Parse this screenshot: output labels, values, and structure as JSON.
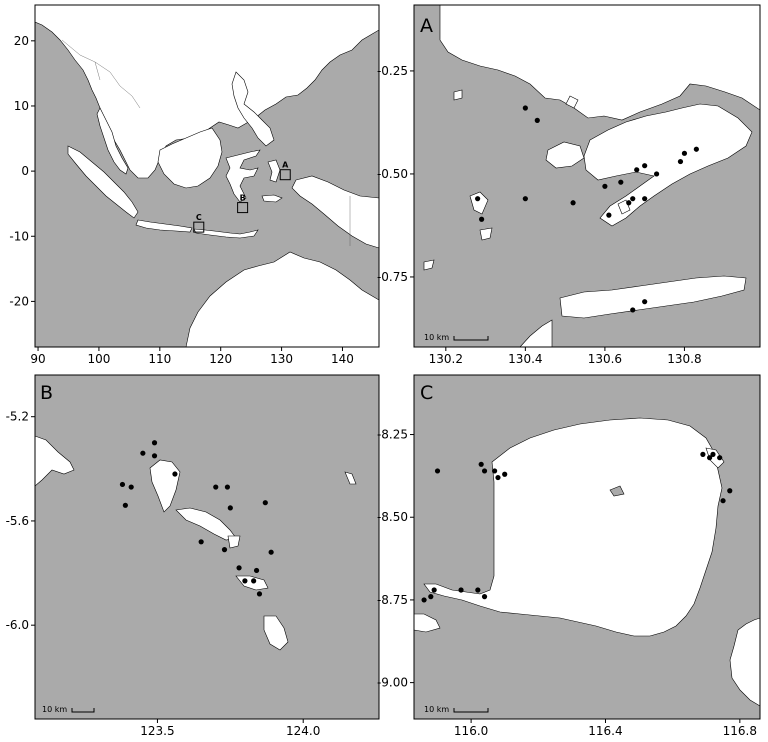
{
  "panels": {
    "overview": {
      "x_ticks": [
        "90",
        "100",
        "110",
        "120",
        "130",
        "140"
      ],
      "y_ticks": [
        "20",
        "10",
        "0",
        "-10",
        "-20"
      ],
      "x_lim": [
        89.5,
        146
      ],
      "y_lim": [
        -27,
        25.5
      ],
      "inset_boxes": [
        {
          "label": "A",
          "lon": 130.6,
          "lat": -0.55
        },
        {
          "label": "B",
          "lon": 123.6,
          "lat": -5.6
        },
        {
          "label": "C",
          "lon": 116.4,
          "lat": -8.6
        }
      ]
    },
    "A": {
      "label": "A",
      "x_ticks": [
        "130.2",
        "130.4",
        "130.6",
        "130.8"
      ],
      "y_ticks": [
        "-0.25",
        "-0.50",
        "-0.75"
      ],
      "x_lim": [
        130.12,
        130.99
      ],
      "y_lim": [
        -0.92,
        -0.09
      ],
      "scale": "10 km",
      "sites": [
        [
          130.4,
          -0.34
        ],
        [
          130.43,
          -0.37
        ],
        [
          130.28,
          -0.56
        ],
        [
          130.29,
          -0.61
        ],
        [
          130.4,
          -0.56
        ],
        [
          130.52,
          -0.57
        ],
        [
          130.6,
          -0.53
        ],
        [
          130.64,
          -0.52
        ],
        [
          130.68,
          -0.49
        ],
        [
          130.7,
          -0.48
        ],
        [
          130.73,
          -0.5
        ],
        [
          130.79,
          -0.47
        ],
        [
          130.8,
          -0.45
        ],
        [
          130.83,
          -0.44
        ],
        [
          130.66,
          -0.57
        ],
        [
          130.67,
          -0.56
        ],
        [
          130.7,
          -0.56
        ],
        [
          130.61,
          -0.6
        ],
        [
          130.67,
          -0.83
        ],
        [
          130.7,
          -0.81
        ]
      ]
    },
    "B": {
      "label": "B",
      "x_ticks": [
        "123.5",
        "124.0"
      ],
      "y_ticks": [
        "-5.2",
        "-5.6",
        "-6.0"
      ],
      "x_lim": [
        123.08,
        124.26
      ],
      "y_lim": [
        -6.36,
        -5.04
      ],
      "scale": "10 km",
      "sites": [
        [
          123.38,
          -5.46
        ],
        [
          123.39,
          -5.54
        ],
        [
          123.41,
          -5.47
        ],
        [
          123.45,
          -5.34
        ],
        [
          123.49,
          -5.35
        ],
        [
          123.49,
          -5.3
        ],
        [
          123.56,
          -5.42
        ],
        [
          123.65,
          -5.68
        ],
        [
          123.7,
          -5.47
        ],
        [
          123.73,
          -5.71
        ],
        [
          123.74,
          -5.47
        ],
        [
          123.75,
          -5.55
        ],
        [
          123.78,
          -5.78
        ],
        [
          123.8,
          -5.83
        ],
        [
          123.83,
          -5.83
        ],
        [
          123.84,
          -5.79
        ],
        [
          123.85,
          -5.88
        ],
        [
          123.87,
          -5.53
        ],
        [
          123.89,
          -5.72
        ]
      ]
    },
    "C": {
      "label": "C",
      "x_ticks": [
        "116.0",
        "116.4",
        "116.8"
      ],
      "y_ticks": [
        "-8.25",
        "-8.50",
        "-8.75",
        "-9.00"
      ],
      "x_lim": [
        115.83,
        116.86
      ],
      "y_lim": [
        -9.11,
        -8.07
      ],
      "scale": "10 km",
      "sites": [
        [
          115.86,
          -8.75
        ],
        [
          115.88,
          -8.74
        ],
        [
          115.89,
          -8.72
        ],
        [
          115.9,
          -8.36
        ],
        [
          115.97,
          -8.72
        ],
        [
          116.02,
          -8.72
        ],
        [
          116.04,
          -8.74
        ],
        [
          116.03,
          -8.34
        ],
        [
          116.04,
          -8.36
        ],
        [
          116.07,
          -8.36
        ],
        [
          116.08,
          -8.38
        ],
        [
          116.1,
          -8.37
        ],
        [
          116.69,
          -8.31
        ],
        [
          116.71,
          -8.32
        ],
        [
          116.72,
          -8.31
        ],
        [
          116.74,
          -8.32
        ],
        [
          116.75,
          -8.45
        ],
        [
          116.77,
          -8.42
        ]
      ]
    }
  },
  "colors": {
    "sea": "#aaaaaa",
    "land": "#ffffff",
    "site": "#000000"
  }
}
